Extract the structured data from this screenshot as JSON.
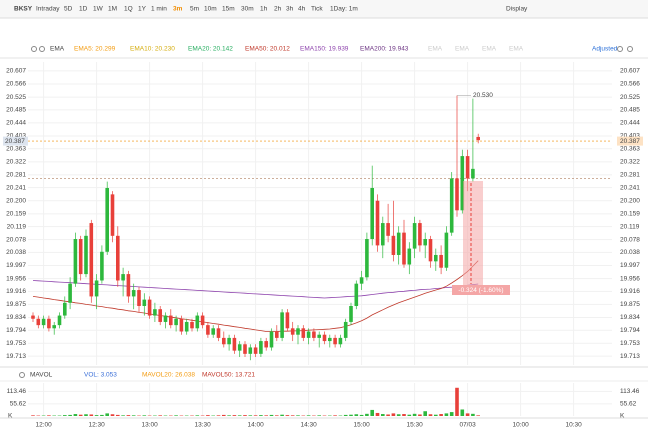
{
  "toolbar": {
    "symbol": "BKSY",
    "items": [
      "Intraday",
      "5D",
      "1D",
      "1W",
      "1M",
      "1Q",
      "1Y",
      "1 min",
      "3m",
      "5m",
      "10m",
      "15m",
      "30m",
      "1h",
      "2h",
      "3h",
      "4h",
      "Tick",
      "1Day: 1m"
    ],
    "selected": "3m",
    "display": "Display"
  },
  "indicators": {
    "name": "EMA",
    "lines": [
      {
        "text": "EMA5: 20.299",
        "color": "#f39c12"
      },
      {
        "text": "EMA10: 20.230",
        "color": "#d4ac0d"
      },
      {
        "text": "EMA20: 20.142",
        "color": "#27ae60"
      },
      {
        "text": "EMA50: 20.012",
        "color": "#c0392b"
      },
      {
        "text": "EMA150: 19.939",
        "color": "#8e44ad"
      },
      {
        "text": "EMA200: 19.943",
        "color": "#6c3483"
      }
    ],
    "faded": [
      "EMA",
      "EMA",
      "EMA",
      "EMA"
    ],
    "adjusted": "Adjusted"
  },
  "chart_data": {
    "type": "candlestick",
    "up_color": "#2db83d",
    "down_color": "#e8403a",
    "open": [
      19.84,
      19.83,
      19.81,
      19.83,
      19.8,
      19.81,
      19.84,
      19.88,
      19.94,
      20.08,
      19.97,
      20.13,
      19.9,
      19.95,
      20.04,
      20.22,
      20.09,
      19.95,
      19.97,
      19.9,
      19.92,
      19.87,
      19.89,
      19.84,
      19.86,
      19.82,
      19.84,
      19.81,
      19.83,
      19.79,
      19.82,
      19.8,
      19.84,
      19.81,
      19.78,
      19.8,
      19.77,
      19.75,
      19.77,
      19.73,
      19.75,
      19.72,
      19.74,
      19.72,
      19.76,
      19.74,
      19.79,
      19.77,
      19.85,
      19.8,
      19.78,
      19.8,
      19.77,
      19.79,
      19.77,
      19.78,
      19.76,
      19.77,
      19.75,
      19.77,
      19.82,
      19.87,
      19.94,
      19.96,
      20.08,
      20.2,
      20.06,
      20.13,
      20.09,
      20.03,
      20.1,
      20.0,
      20.05,
      20.13,
      20.06,
      20.08,
      20.01,
      20.03,
      19.99,
      20.1,
      20.27,
      20.17,
      20.34,
      20.27,
      20.4
    ],
    "high": [
      19.85,
      19.84,
      19.84,
      19.84,
      19.82,
      19.85,
      19.9,
      19.96,
      20.1,
      20.09,
      20.11,
      20.14,
      19.97,
      20.06,
      20.26,
      20.23,
      20.12,
      19.99,
      19.98,
      19.94,
      19.93,
      19.91,
      19.9,
      19.88,
      19.87,
      19.85,
      19.86,
      19.84,
      19.84,
      19.83,
      19.83,
      19.85,
      19.85,
      19.82,
      19.81,
      19.81,
      19.79,
      19.78,
      19.78,
      19.76,
      19.76,
      19.75,
      19.75,
      19.77,
      19.77,
      19.8,
      19.81,
      19.86,
      19.86,
      19.82,
      19.81,
      19.81,
      19.8,
      19.8,
      19.79,
      19.79,
      19.78,
      19.78,
      19.78,
      19.83,
      19.88,
      19.95,
      19.98,
      20.1,
      20.31,
      20.22,
      20.15,
      20.19,
      20.2,
      20.12,
      20.14,
      20.07,
      20.15,
      20.14,
      20.1,
      20.09,
      20.05,
      20.06,
      20.12,
      20.29,
      20.53,
      20.36,
      20.36,
      20.52,
      20.41
    ],
    "low": [
      19.82,
      19.8,
      19.8,
      19.79,
      19.78,
      19.8,
      19.83,
      19.86,
      19.93,
      19.95,
      19.96,
      19.88,
      19.86,
      19.94,
      20.03,
      20.07,
      19.93,
      19.9,
      19.88,
      19.86,
      19.85,
      19.84,
      19.83,
      19.82,
      19.81,
      19.8,
      19.8,
      19.79,
      19.78,
      19.78,
      19.79,
      19.79,
      19.8,
      19.77,
      19.77,
      19.76,
      19.74,
      19.73,
      19.72,
      19.71,
      19.71,
      19.7,
      19.71,
      19.71,
      19.73,
      19.73,
      19.76,
      19.76,
      19.79,
      19.76,
      19.75,
      19.76,
      19.75,
      19.76,
      19.74,
      19.75,
      19.74,
      19.74,
      19.74,
      19.76,
      19.81,
      19.86,
      19.92,
      19.95,
      20.06,
      20.04,
      20.02,
      20.07,
      20.01,
      20.0,
      19.99,
      19.97,
      20.02,
      20.04,
      20.02,
      19.99,
      19.98,
      19.97,
      19.98,
      20.09,
      20.15,
      20.16,
      20.23,
      20.26,
      20.38
    ],
    "close": [
      19.83,
      19.81,
      19.83,
      19.8,
      19.81,
      19.84,
      19.88,
      19.94,
      20.08,
      19.97,
      20.09,
      19.9,
      19.95,
      20.04,
      20.24,
      20.09,
      19.95,
      19.97,
      19.9,
      19.92,
      19.87,
      19.89,
      19.84,
      19.86,
      19.82,
      19.84,
      19.81,
      19.83,
      19.79,
      19.82,
      19.8,
      19.84,
      19.81,
      19.78,
      19.8,
      19.77,
      19.75,
      19.77,
      19.73,
      19.75,
      19.72,
      19.74,
      19.72,
      19.76,
      19.74,
      19.79,
      19.77,
      19.85,
      19.8,
      19.78,
      19.8,
      19.77,
      19.79,
      19.77,
      19.78,
      19.76,
      19.77,
      19.75,
      19.77,
      19.82,
      19.87,
      19.94,
      19.96,
      20.08,
      20.24,
      20.06,
      20.13,
      20.09,
      20.03,
      20.1,
      20.0,
      20.05,
      20.13,
      20.06,
      20.08,
      20.01,
      20.03,
      19.99,
      20.1,
      20.27,
      20.17,
      20.34,
      20.27,
      20.3,
      20.39
    ],
    "series": [
      {
        "color": "#8e44ad",
        "values": [
          19.95,
          19.949,
          19.948,
          19.947,
          19.946,
          19.945,
          19.944,
          19.943,
          19.942,
          19.941,
          19.94,
          19.939,
          19.938,
          19.937,
          19.936,
          19.935,
          19.934,
          19.933,
          19.932,
          19.931,
          19.93,
          19.929,
          19.928,
          19.927,
          19.926,
          19.925,
          19.924,
          19.923,
          19.922,
          19.921,
          19.92,
          19.919,
          19.918,
          19.917,
          19.916,
          19.915,
          19.914,
          19.913,
          19.912,
          19.911,
          19.91,
          19.909,
          19.908,
          19.907,
          19.906,
          19.905,
          19.904,
          19.903,
          19.902,
          19.901,
          19.9,
          19.899,
          19.898,
          19.897,
          19.896,
          19.895,
          19.896,
          19.897,
          19.898,
          19.899,
          19.9,
          19.901,
          19.902,
          19.904,
          19.906,
          19.908,
          19.91,
          19.912,
          19.913,
          19.915,
          19.916,
          19.918,
          19.919,
          19.921,
          19.922,
          19.923,
          19.925,
          19.926,
          19.928,
          19.929,
          19.931,
          19.933,
          19.935,
          19.937,
          19.939
        ]
      },
      {
        "color": "#c0392b",
        "values": [
          19.9,
          19.898,
          19.895,
          19.893,
          19.89,
          19.888,
          19.885,
          19.883,
          19.88,
          19.878,
          19.875,
          19.873,
          19.87,
          19.868,
          19.865,
          19.863,
          19.86,
          19.858,
          19.855,
          19.853,
          19.85,
          19.848,
          19.845,
          19.843,
          19.84,
          19.838,
          19.835,
          19.833,
          19.83,
          19.828,
          19.825,
          19.823,
          19.82,
          19.818,
          19.815,
          19.813,
          19.81,
          19.808,
          19.805,
          19.803,
          19.8,
          19.798,
          19.795,
          19.793,
          19.79,
          19.79,
          19.79,
          19.791,
          19.791,
          19.792,
          19.792,
          19.793,
          19.794,
          19.795,
          19.796,
          19.797,
          19.798,
          19.8,
          19.802,
          19.806,
          19.811,
          19.817,
          19.824,
          19.832,
          19.842,
          19.85,
          19.858,
          19.866,
          19.873,
          19.88,
          19.886,
          19.892,
          19.898,
          19.904,
          19.91,
          19.915,
          19.92,
          19.925,
          19.932,
          19.942,
          19.953,
          19.965,
          19.978,
          19.995,
          20.012
        ]
      }
    ],
    "ylim": [
      19.685,
      20.635
    ],
    "yticks": [
      {
        "value": 20.607,
        "label": "20.607"
      },
      {
        "value": 20.566,
        "label": "20.566"
      },
      {
        "value": 20.525,
        "label": "20.525"
      },
      {
        "value": 20.485,
        "label": "20.485"
      },
      {
        "value": 20.444,
        "label": "20.444"
      },
      {
        "value": 20.403,
        "label": "20.403"
      },
      {
        "value": 20.363,
        "label": "20.363"
      },
      {
        "value": 20.322,
        "label": "20.322"
      },
      {
        "value": 20.281,
        "label": "20.281"
      },
      {
        "value": 20.241,
        "label": "20.241"
      },
      {
        "value": 20.2,
        "label": "20.200"
      },
      {
        "value": 20.159,
        "label": "20.159"
      },
      {
        "value": 20.119,
        "label": "20.119"
      },
      {
        "value": 20.078,
        "label": "20.078"
      },
      {
        "value": 20.038,
        "label": "20.038"
      },
      {
        "value": 19.997,
        "label": "19.997"
      },
      {
        "value": 19.956,
        "label": "19.956"
      },
      {
        "value": 19.916,
        "label": "19.916"
      },
      {
        "value": 19.875,
        "label": "19.875"
      },
      {
        "value": 19.834,
        "label": "19.834"
      },
      {
        "value": 19.794,
        "label": "19.794"
      },
      {
        "value": 19.753,
        "label": "19.753"
      },
      {
        "value": 19.713,
        "label": "19.713"
      }
    ],
    "xticks": [
      {
        "value": 2,
        "label": "12:00"
      },
      {
        "value": 12,
        "label": "12:30"
      },
      {
        "value": 22,
        "label": "13:00"
      },
      {
        "value": 32,
        "label": "13:30"
      },
      {
        "value": 42,
        "label": "14:00"
      },
      {
        "value": 52,
        "label": "14:30"
      },
      {
        "value": 62,
        "label": "15:00"
      },
      {
        "value": 72,
        "label": "15:30"
      },
      {
        "value": 82,
        "label": "07/03"
      },
      {
        "value": 92,
        "label": "10:00"
      },
      {
        "value": 102,
        "label": "10:30"
      }
    ],
    "last_price": 20.387,
    "prev_close": 20.27,
    "high_annotation": {
      "value": 20.53,
      "label": "20.530"
    },
    "measure_label": "-0.324 (-1.60%)",
    "volume": {
      "legend": [
        {
          "text": "MAVOL",
          "color": "#444"
        },
        {
          "text": "VOL: 3.053",
          "color": "#3a6fd8"
        },
        {
          "text": "MAVOL20: 26.038",
          "color": "#f39c12"
        },
        {
          "text": "MAVOL50: 13.721",
          "color": "#c0392b"
        }
      ],
      "values": [
        3,
        2,
        2,
        3,
        2,
        2,
        4,
        5,
        9,
        6,
        8,
        7,
        4,
        5,
        12,
        8,
        5,
        3,
        4,
        3,
        2,
        3,
        2,
        2,
        3,
        2,
        2,
        3,
        2,
        2,
        2,
        3,
        2,
        4,
        2,
        3,
        5,
        3,
        4,
        3,
        4,
        3,
        3,
        4,
        3,
        5,
        3,
        6,
        4,
        3,
        3,
        2,
        3,
        2,
        3,
        2,
        2,
        3,
        2,
        5,
        6,
        8,
        5,
        10,
        28,
        14,
        9,
        7,
        12,
        8,
        9,
        6,
        10,
        7,
        22,
        8,
        6,
        9,
        12,
        18,
        130,
        30,
        12,
        10,
        3
      ],
      "ylim": [
        0,
        152
      ],
      "yticks": [
        113.46,
        55.62
      ],
      "unit": "K"
    }
  }
}
